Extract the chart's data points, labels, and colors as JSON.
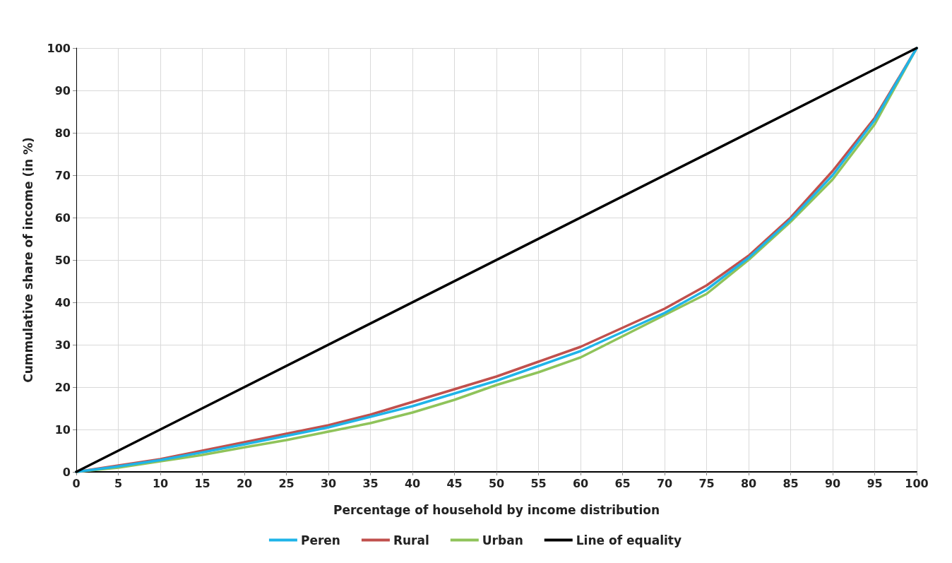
{
  "chart_data": {
    "type": "line",
    "xlabel": "Percentage of household by income distribution",
    "ylabel": "Cummulative share of income (in %)",
    "x": [
      0,
      5,
      10,
      15,
      20,
      25,
      30,
      35,
      40,
      45,
      50,
      55,
      60,
      65,
      70,
      75,
      80,
      85,
      90,
      95,
      100
    ],
    "series": [
      {
        "name": "Peren",
        "color": "#1fb4e8",
        "values": [
          0,
          1.3,
          2.8,
          4.6,
          6.5,
          8.5,
          10.5,
          13,
          15.5,
          18.5,
          21.5,
          25,
          28.5,
          33,
          37.5,
          43,
          50.5,
          59.5,
          70,
          83,
          100
        ]
      },
      {
        "name": "Rural",
        "color": "#c0504d",
        "values": [
          0,
          1.5,
          3,
          5,
          7,
          9,
          11,
          13.5,
          16.5,
          19.5,
          22.5,
          26,
          29.5,
          34,
          38.5,
          44,
          51,
          60,
          71,
          83.5,
          100
        ]
      },
      {
        "name": "Urban",
        "color": "#8fc35a",
        "values": [
          0,
          1,
          2.5,
          4,
          5.8,
          7.5,
          9.5,
          11.5,
          14,
          17,
          20.5,
          23.5,
          27,
          32,
          37,
          42,
          50,
          59,
          69,
          82,
          100
        ]
      },
      {
        "name": "Line of equality",
        "color": "#000000",
        "x": [
          0,
          100
        ],
        "values": [
          0,
          100
        ]
      }
    ],
    "xlim": [
      0,
      100
    ],
    "xticks": [
      0,
      5,
      10,
      15,
      20,
      25,
      30,
      35,
      40,
      45,
      50,
      55,
      60,
      65,
      70,
      75,
      80,
      85,
      90,
      95,
      100
    ],
    "ylim": [
      0,
      100
    ],
    "yticks": [
      0,
      10,
      20,
      30,
      40,
      50,
      60,
      70,
      80,
      90,
      100
    ],
    "grid": true,
    "legend": "bottom",
    "marker": "none",
    "line_style": "solid"
  }
}
